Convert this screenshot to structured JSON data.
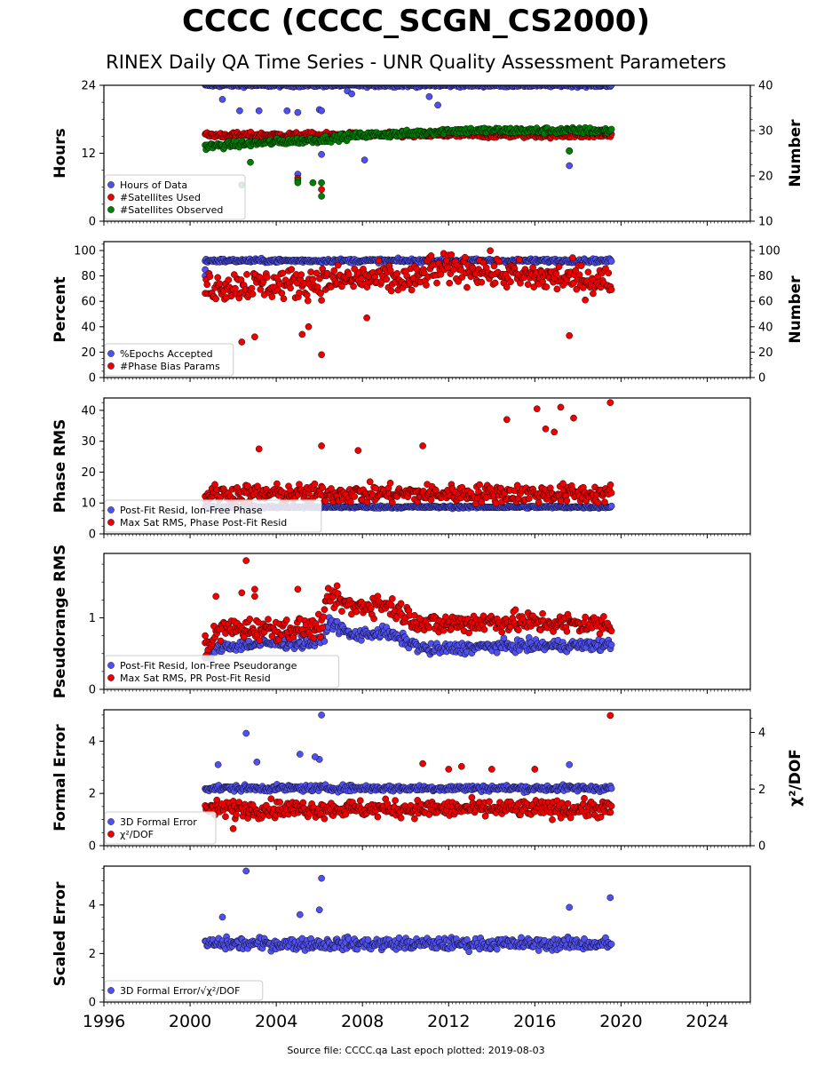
{
  "header": {
    "title": "CCCC (CCCC_SCGN_CS2000)",
    "subtitle": "RINEX Daily QA Time Series - UNR Quality Assessment Parameters"
  },
  "footer": {
    "text": "Source file: CCCC.qa Last epoch plotted: 2019-08-03"
  },
  "chart_data": [
    {
      "type": "scatter",
      "ylabel": "Hours",
      "ylabel_right": "Number",
      "xlim": [
        1996,
        2026
      ],
      "ylim": [
        0,
        24
      ],
      "ylim_right": [
        10,
        40
      ],
      "yticks": [
        0,
        12,
        24
      ],
      "yticks_right": [
        10,
        20,
        30,
        40
      ],
      "legend_position": "lower-left",
      "series": [
        {
          "name": "Hours of Data",
          "color": "#5050ee",
          "axis": "left",
          "data_range": [
            2000.7,
            2019.6
          ],
          "typical": 24,
          "spread": 0.3,
          "outliers": [
            [
              2001.5,
              21.5
            ],
            [
              2002.3,
              19.5
            ],
            [
              2003.2,
              19.5
            ],
            [
              2004.5,
              19.5
            ],
            [
              2005.0,
              19.2
            ],
            [
              2006.0,
              19.7
            ],
            [
              2006.1,
              19.5
            ],
            [
              2011.1,
              22
            ],
            [
              2011.5,
              20.5
            ],
            [
              2005.5,
              15.5
            ],
            [
              2006.1,
              11.8
            ],
            [
              2007.3,
              23
            ],
            [
              2007.5,
              22.5
            ],
            [
              2008.1,
              10.8
            ],
            [
              2005.0,
              8.3
            ],
            [
              2017.6,
              9.8
            ],
            [
              2017.6,
              12.4
            ]
          ]
        },
        {
          "name": "#Satellites Used",
          "color": "#ee0000",
          "axis": "right",
          "data_range": [
            2000.7,
            2019.6
          ],
          "typical": 29,
          "spread": 0.6,
          "outliers": [
            [
              2002.4,
              18
            ],
            [
              2005.0,
              19.5
            ],
            [
              2006.1,
              17
            ],
            [
              2017.6,
              25.5
            ]
          ]
        },
        {
          "name": "#Satellites Observed",
          "color": "#008000",
          "axis": "right",
          "trend": [
            [
              2000.7,
              26.5
            ],
            [
              2004.0,
              27.5
            ],
            [
              2006.0,
              28.0
            ],
            [
              2008.0,
              29.0
            ],
            [
              2010.0,
              29.3
            ],
            [
              2012.0,
              30.0
            ],
            [
              2016.0,
              30.0
            ],
            [
              2019.6,
              30.0
            ]
          ],
          "spread": 0.7,
          "outliers": [
            [
              2002.4,
              18
            ],
            [
              2005.0,
              19
            ],
            [
              2005.0,
              18.5
            ],
            [
              2005.7,
              18.5
            ],
            [
              2006.1,
              15.5
            ],
            [
              2006.1,
              18.5
            ],
            [
              2017.6,
              25.5
            ],
            [
              2002.8,
              23
            ]
          ]
        }
      ]
    },
    {
      "type": "scatter",
      "ylabel": "Percent",
      "ylabel_right": "Number",
      "xlim": [
        1996,
        2026
      ],
      "ylim": [
        0,
        107
      ],
      "ylim_right": [
        0,
        107
      ],
      "yticks": [
        0,
        20,
        40,
        60,
        80,
        100
      ],
      "yticks_right": [
        0,
        20,
        40,
        60,
        80,
        100
      ],
      "legend_position": "lower-left",
      "series": [
        {
          "name": "%Epochs Accepted",
          "color": "#5050ee",
          "axis": "left",
          "data_range": [
            2000.7,
            2019.6
          ],
          "typical": 92,
          "spread": 1.5,
          "outliers": [
            [
              2000.7,
              85
            ],
            [
              2000.7,
              80
            ]
          ]
        },
        {
          "name": "#Phase Bias Params",
          "color": "#ee0000",
          "axis": "right",
          "trend": [
            [
              2000.7,
              72
            ],
            [
              2005.0,
              74
            ],
            [
              2008.0,
              78
            ],
            [
              2010.5,
              76
            ],
            [
              2011.0,
              84
            ],
            [
              2013.0,
              86
            ],
            [
              2015.0,
              80
            ],
            [
              2019.6,
              76
            ]
          ],
          "spread": 12,
          "outliers": [
            [
              2002.4,
              28
            ],
            [
              2003.0,
              32
            ],
            [
              2005.2,
              34
            ],
            [
              2005.5,
              40
            ],
            [
              2006.1,
              18
            ],
            [
              2008.2,
              47
            ],
            [
              2017.6,
              33
            ]
          ]
        }
      ]
    },
    {
      "type": "scatter",
      "ylabel": "Phase RMS",
      "xlim": [
        1996,
        2026
      ],
      "ylim": [
        0,
        44
      ],
      "yticks": [
        0,
        10,
        20,
        30,
        40
      ],
      "legend_position": "lower-left",
      "series": [
        {
          "name": "Post-Fit Resid, Ion-Free Phase",
          "color": "#5050ee",
          "axis": "left",
          "data_range": [
            2000.7,
            2019.6
          ],
          "typical": 8.7,
          "spread": 0.4
        },
        {
          "name": "Max Sat RMS, Phase Post-Fit Resid",
          "color": "#ee0000",
          "axis": "left",
          "data_range": [
            2000.7,
            2019.6
          ],
          "typical": 13,
          "spread": 3,
          "outliers": [
            [
              2014.7,
              37
            ],
            [
              2016.1,
              40.5
            ],
            [
              2017.2,
              41
            ],
            [
              2017.8,
              37.5
            ],
            [
              2019.5,
              42.5
            ],
            [
              2016.5,
              34
            ],
            [
              2016.9,
              33
            ],
            [
              2010.8,
              28.5
            ],
            [
              2007.8,
              27
            ],
            [
              2003.2,
              27.5
            ],
            [
              2006.1,
              28.5
            ]
          ]
        }
      ]
    },
    {
      "type": "scatter",
      "ylabel": "Pseudorange RMS",
      "xlim": [
        1996,
        2026
      ],
      "ylim": [
        0,
        1.9
      ],
      "yticks": [
        0,
        1
      ],
      "legend_position": "lower-left",
      "series": [
        {
          "name": "Post-Fit Resid, Ion-Free Pseudorange",
          "color": "#5050ee",
          "axis": "left",
          "trend": [
            [
              2000.7,
              0.45
            ],
            [
              2001.5,
              0.6
            ],
            [
              2004.0,
              0.65
            ],
            [
              2006.0,
              0.65
            ],
            [
              2006.5,
              0.95
            ],
            [
              2007.5,
              0.75
            ],
            [
              2009.0,
              0.8
            ],
            [
              2011.0,
              0.55
            ],
            [
              2014.0,
              0.6
            ],
            [
              2019.6,
              0.62
            ]
          ],
          "spread": 0.08
        },
        {
          "name": "Max Sat RMS, PR Post-Fit Resid",
          "color": "#ee0000",
          "axis": "left",
          "trend": [
            [
              2000.7,
              0.6
            ],
            [
              2001.5,
              0.85
            ],
            [
              2004.0,
              0.85
            ],
            [
              2006.0,
              0.85
            ],
            [
              2006.5,
              1.3
            ],
            [
              2007.5,
              1.15
            ],
            [
              2009.0,
              1.2
            ],
            [
              2011.0,
              0.9
            ],
            [
              2014.0,
              0.95
            ],
            [
              2019.6,
              0.9
            ]
          ],
          "spread": 0.15,
          "outliers": [
            [
              2002.6,
              1.8
            ],
            [
              2002.4,
              1.35
            ],
            [
              2003.0,
              1.4
            ],
            [
              2003.0,
              1.3
            ],
            [
              2005.0,
              1.4
            ],
            [
              2000.7,
              0.75
            ],
            [
              2001.2,
              1.3
            ]
          ]
        }
      ]
    },
    {
      "type": "scatter",
      "ylabel": "Formal Error",
      "ylabel_right": "χ²/DOF",
      "xlim": [
        1996,
        2026
      ],
      "ylim": [
        0,
        5.2
      ],
      "ylim_right": [
        0,
        4.8
      ],
      "yticks": [
        0,
        2,
        4
      ],
      "yticks_right": [
        0,
        2,
        4
      ],
      "legend_position": "lower-left",
      "series": [
        {
          "name": "3D Formal Error",
          "color": "#5050ee",
          "axis": "left",
          "data_range": [
            2000.7,
            2019.6
          ],
          "typical": 2.2,
          "spread": 0.12,
          "outliers": [
            [
              2002.6,
              4.3
            ],
            [
              2006.1,
              5.0
            ],
            [
              2005.1,
              3.5
            ],
            [
              2006.0,
              3.3
            ],
            [
              2003.1,
              3.2
            ],
            [
              2001.3,
              3.1
            ],
            [
              2017.6,
              3.1
            ],
            [
              2005.8,
              3.4
            ]
          ]
        },
        {
          "name": "χ²/DOF",
          "color": "#ee0000",
          "axis": "right",
          "data_range": [
            2000.7,
            2019.6
          ],
          "typical": 1.3,
          "spread": 0.3,
          "outliers": [
            [
              2019.5,
              4.6
            ],
            [
              2010.8,
              2.9
            ],
            [
              2012.6,
              2.8
            ],
            [
              2012.0,
              2.7
            ],
            [
              2016.0,
              2.7
            ],
            [
              2014.0,
              2.7
            ],
            [
              2002.0,
              0.6
            ]
          ]
        }
      ]
    },
    {
      "type": "scatter",
      "ylabel": "Scaled Error",
      "xlim": [
        1996,
        2026
      ],
      "ylim": [
        0,
        5.6
      ],
      "yticks": [
        0,
        2,
        4
      ],
      "xticks": [
        1996,
        2000,
        2004,
        2008,
        2012,
        2016,
        2020,
        2024
      ],
      "legend_position": "lower-left",
      "series": [
        {
          "name": "3D Formal Error/√χ²/DOF",
          "color": "#5050ee",
          "axis": "left",
          "data_range": [
            2000.7,
            2019.6
          ],
          "typical": 2.4,
          "spread": 0.25,
          "outliers": [
            [
              2002.6,
              5.4
            ],
            [
              2006.1,
              5.1
            ],
            [
              2019.5,
              4.3
            ],
            [
              2017.6,
              3.9
            ],
            [
              2006.0,
              3.8
            ],
            [
              2005.1,
              3.6
            ],
            [
              2001.5,
              3.5
            ]
          ]
        }
      ]
    }
  ]
}
